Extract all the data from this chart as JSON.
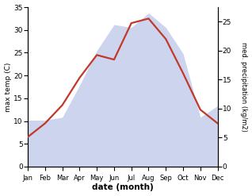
{
  "months": [
    "Jan",
    "Feb",
    "Mar",
    "Apr",
    "May",
    "Jun",
    "Jul",
    "Aug",
    "Sep",
    "Oct",
    "Nov",
    "Dec"
  ],
  "month_indices": [
    1,
    2,
    3,
    4,
    5,
    6,
    7,
    8,
    9,
    10,
    11,
    12
  ],
  "temp": [
    6.5,
    9.5,
    13.5,
    19.5,
    24.5,
    23.5,
    31.5,
    32.5,
    28.0,
    20.5,
    12.5,
    9.5
  ],
  "precip": [
    8.0,
    8.0,
    8.5,
    14.0,
    20.0,
    24.5,
    24.0,
    26.5,
    24.0,
    19.5,
    8.5,
    10.5
  ],
  "precip_fill_color": "#b8c4e8",
  "precip_fill_alpha": 0.7,
  "temp_color": "#c0392b",
  "temp_ylim": [
    0,
    35
  ],
  "precip_ylim": [
    0,
    27.5
  ],
  "temp_yticks": [
    0,
    5,
    10,
    15,
    20,
    25,
    30,
    35
  ],
  "precip_yticks": [
    0,
    5,
    10,
    15,
    20,
    25
  ],
  "xlabel": "date (month)",
  "ylabel_left": "max temp (C)",
  "ylabel_right": "med. precipitation (kg/m2)",
  "line_width": 1.6,
  "figsize": [
    3.18,
    2.47
  ],
  "dpi": 100
}
